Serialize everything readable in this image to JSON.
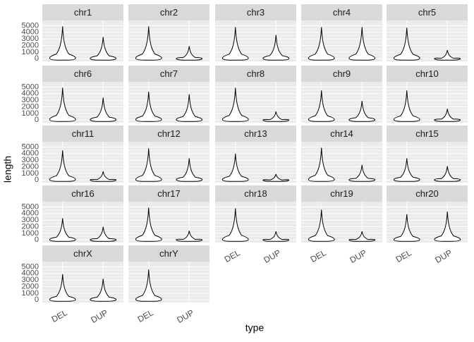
{
  "chart_data": {
    "type": "violin",
    "x_label": "type",
    "y_label": "length",
    "categories": [
      "DEL",
      "DUP"
    ],
    "ylim": [
      -400,
      5800
    ],
    "yticks": [
      0,
      1000,
      2000,
      3000,
      4000,
      5000
    ],
    "grid": true,
    "color": "#000000",
    "facets": [
      {
        "name": "chr1",
        "values": [
          4900,
          3300
        ]
      },
      {
        "name": "chr2",
        "values": [
          4900,
          1900
        ]
      },
      {
        "name": "chr3",
        "values": [
          4800,
          3600
        ]
      },
      {
        "name": "chr4",
        "values": [
          4800,
          4800
        ]
      },
      {
        "name": "chr5",
        "values": [
          4700,
          1300
        ]
      },
      {
        "name": "chr6",
        "values": [
          4900,
          3400
        ]
      },
      {
        "name": "chr7",
        "values": [
          4300,
          3900
        ]
      },
      {
        "name": "chr8",
        "values": [
          4900,
          1300
        ]
      },
      {
        "name": "chr9",
        "values": [
          4500,
          2900
        ]
      },
      {
        "name": "chr10",
        "values": [
          4500,
          1700
        ]
      },
      {
        "name": "chr11",
        "values": [
          4500,
          1300
        ]
      },
      {
        "name": "chr12",
        "values": [
          4800,
          3300
        ]
      },
      {
        "name": "chr13",
        "values": [
          4000,
          900
        ]
      },
      {
        "name": "chr14",
        "values": [
          4900,
          2300
        ]
      },
      {
        "name": "chr15",
        "values": [
          3300,
          2100
        ]
      },
      {
        "name": "chr16",
        "values": [
          3300,
          2000
        ]
      },
      {
        "name": "chr17",
        "values": [
          4900,
          1400
        ]
      },
      {
        "name": "chr18",
        "values": [
          4800,
          1300
        ]
      },
      {
        "name": "chr19",
        "values": [
          4600,
          1300
        ]
      },
      {
        "name": "chr20",
        "values": [
          3900,
          4300
        ]
      },
      {
        "name": "chrX",
        "values": [
          3900,
          3200
        ]
      },
      {
        "name": "chrY",
        "values": [
          4600,
          null
        ]
      }
    ]
  }
}
